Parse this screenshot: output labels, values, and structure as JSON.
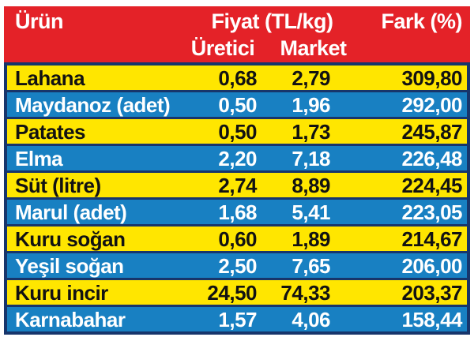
{
  "table": {
    "header": {
      "col_product": "Ürün",
      "col_price_group": "Fiyat (TL/kg)",
      "col_producer": "Üretici",
      "col_market": "Market",
      "col_diff": "Fark (%)"
    },
    "rows": [
      {
        "name": "Lahana",
        "producer": "0,68",
        "market": "2,79",
        "diff": "309,80"
      },
      {
        "name": "Maydanoz (adet)",
        "producer": "0,50",
        "market": "1,96",
        "diff": "292,00"
      },
      {
        "name": "Patates",
        "producer": "0,50",
        "market": "1,73",
        "diff": "245,87"
      },
      {
        "name": "Elma",
        "producer": "2,20",
        "market": "7,18",
        "diff": "226,48"
      },
      {
        "name": "Süt (litre)",
        "producer": "2,74",
        "market": "8,89",
        "diff": "224,45"
      },
      {
        "name": "Marul (adet)",
        "producer": "1,68",
        "market": "5,41",
        "diff": "223,05"
      },
      {
        "name": "Kuru soğan",
        "producer": "0,60",
        "market": "1,89",
        "diff": "214,67"
      },
      {
        "name": "Yeşil soğan",
        "producer": "2,50",
        "market": "7,65",
        "diff": "206,00"
      },
      {
        "name": "Kuru incir",
        "producer": "24,50",
        "market": "74,33",
        "diff": "203,37"
      },
      {
        "name": "Karnabahar",
        "producer": "1,57",
        "market": "4,06",
        "diff": "158,44"
      }
    ],
    "colors": {
      "header_bg": "#e42228",
      "row_yellow": "#ffe600",
      "row_blue": "#1880c2",
      "frame_navy": "#17356b",
      "header_text": "#ffffff",
      "yellow_row_text": "#121212",
      "blue_row_text": "#ffffff"
    }
  },
  "chart_data": {
    "type": "table",
    "title": "",
    "column_group": {
      "label": "Fiyat (TL/kg)",
      "spans": [
        "Üretici",
        "Market"
      ]
    },
    "columns": [
      "Ürün",
      "Üretici",
      "Market",
      "Fark (%)"
    ],
    "rows": [
      [
        "Lahana",
        0.68,
        2.79,
        309.8
      ],
      [
        "Maydanoz (adet)",
        0.5,
        1.96,
        292.0
      ],
      [
        "Patates",
        0.5,
        1.73,
        245.87
      ],
      [
        "Elma",
        2.2,
        7.18,
        226.48
      ],
      [
        "Süt (litre)",
        2.74,
        8.89,
        224.45
      ],
      [
        "Marul (adet)",
        1.68,
        5.41,
        223.05
      ],
      [
        "Kuru soğan",
        0.6,
        1.89,
        214.67
      ],
      [
        "Yeşil soğan",
        2.5,
        7.65,
        206.0
      ],
      [
        "Kuru incir",
        24.5,
        74.33,
        203.37
      ],
      [
        "Karnabahar",
        1.57,
        4.06,
        158.44
      ]
    ],
    "notes": "Producer vs market food prices in TL/kg with percentage markup; alternating yellow/blue striped rows"
  }
}
